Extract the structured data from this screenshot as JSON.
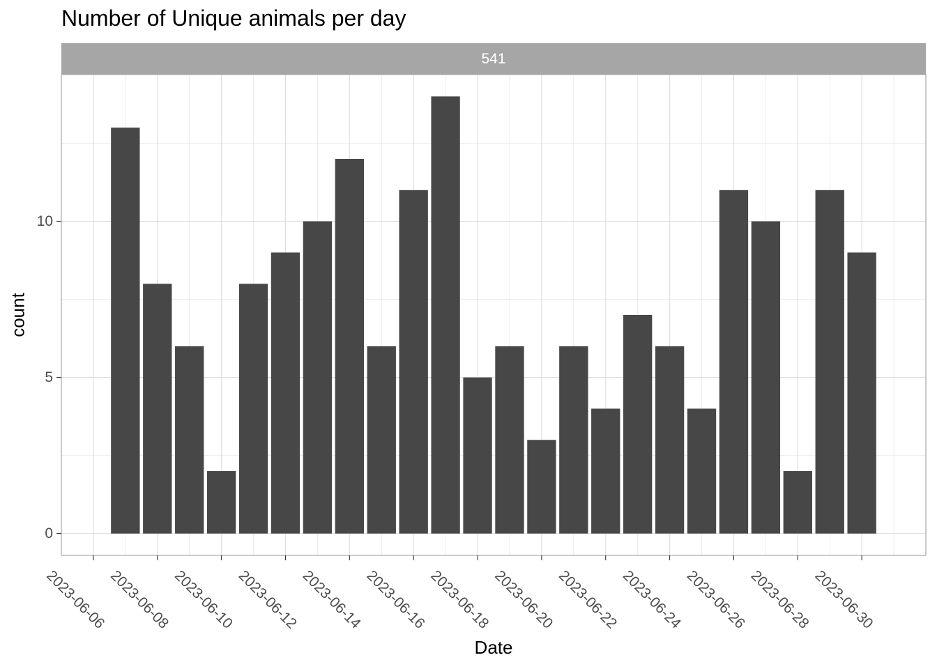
{
  "chart_data": {
    "type": "bar",
    "title": "Number of Unique animals per day",
    "facet_label": "541",
    "xlabel": "Date",
    "ylabel": "count",
    "x": [
      "2023-06-07",
      "2023-06-08",
      "2023-06-09",
      "2023-06-10",
      "2023-06-11",
      "2023-06-12",
      "2023-06-13",
      "2023-06-14",
      "2023-06-15",
      "2023-06-16",
      "2023-06-17",
      "2023-06-18",
      "2023-06-19",
      "2023-06-20",
      "2023-06-21",
      "2023-06-22",
      "2023-06-23",
      "2023-06-24",
      "2023-06-25",
      "2023-06-26",
      "2023-06-27",
      "2023-06-28",
      "2023-06-29",
      "2023-06-30"
    ],
    "values": [
      13,
      8,
      6,
      2,
      8,
      9,
      10,
      12,
      6,
      11,
      14,
      5,
      6,
      3,
      6,
      4,
      7,
      6,
      4,
      11,
      10,
      2,
      11,
      9
    ],
    "xlim": [
      "2023-06-05",
      "2023-07-02"
    ],
    "ylim": [
      -0.7,
      14.7
    ],
    "x_ticks": [
      "2023-06-06",
      "2023-06-08",
      "2023-06-10",
      "2023-06-12",
      "2023-06-14",
      "2023-06-16",
      "2023-06-18",
      "2023-06-20",
      "2023-06-22",
      "2023-06-24",
      "2023-06-26",
      "2023-06-28",
      "2023-06-30"
    ],
    "y_ticks": [
      0,
      5,
      10
    ],
    "y_tick_labels": [
      "0",
      "5",
      "10"
    ],
    "grid": true,
    "bar_color": "#474747",
    "panel_border_color": "#a6a6a6",
    "grid_color": "#dedede",
    "strip_color": "#a6a6a6"
  }
}
